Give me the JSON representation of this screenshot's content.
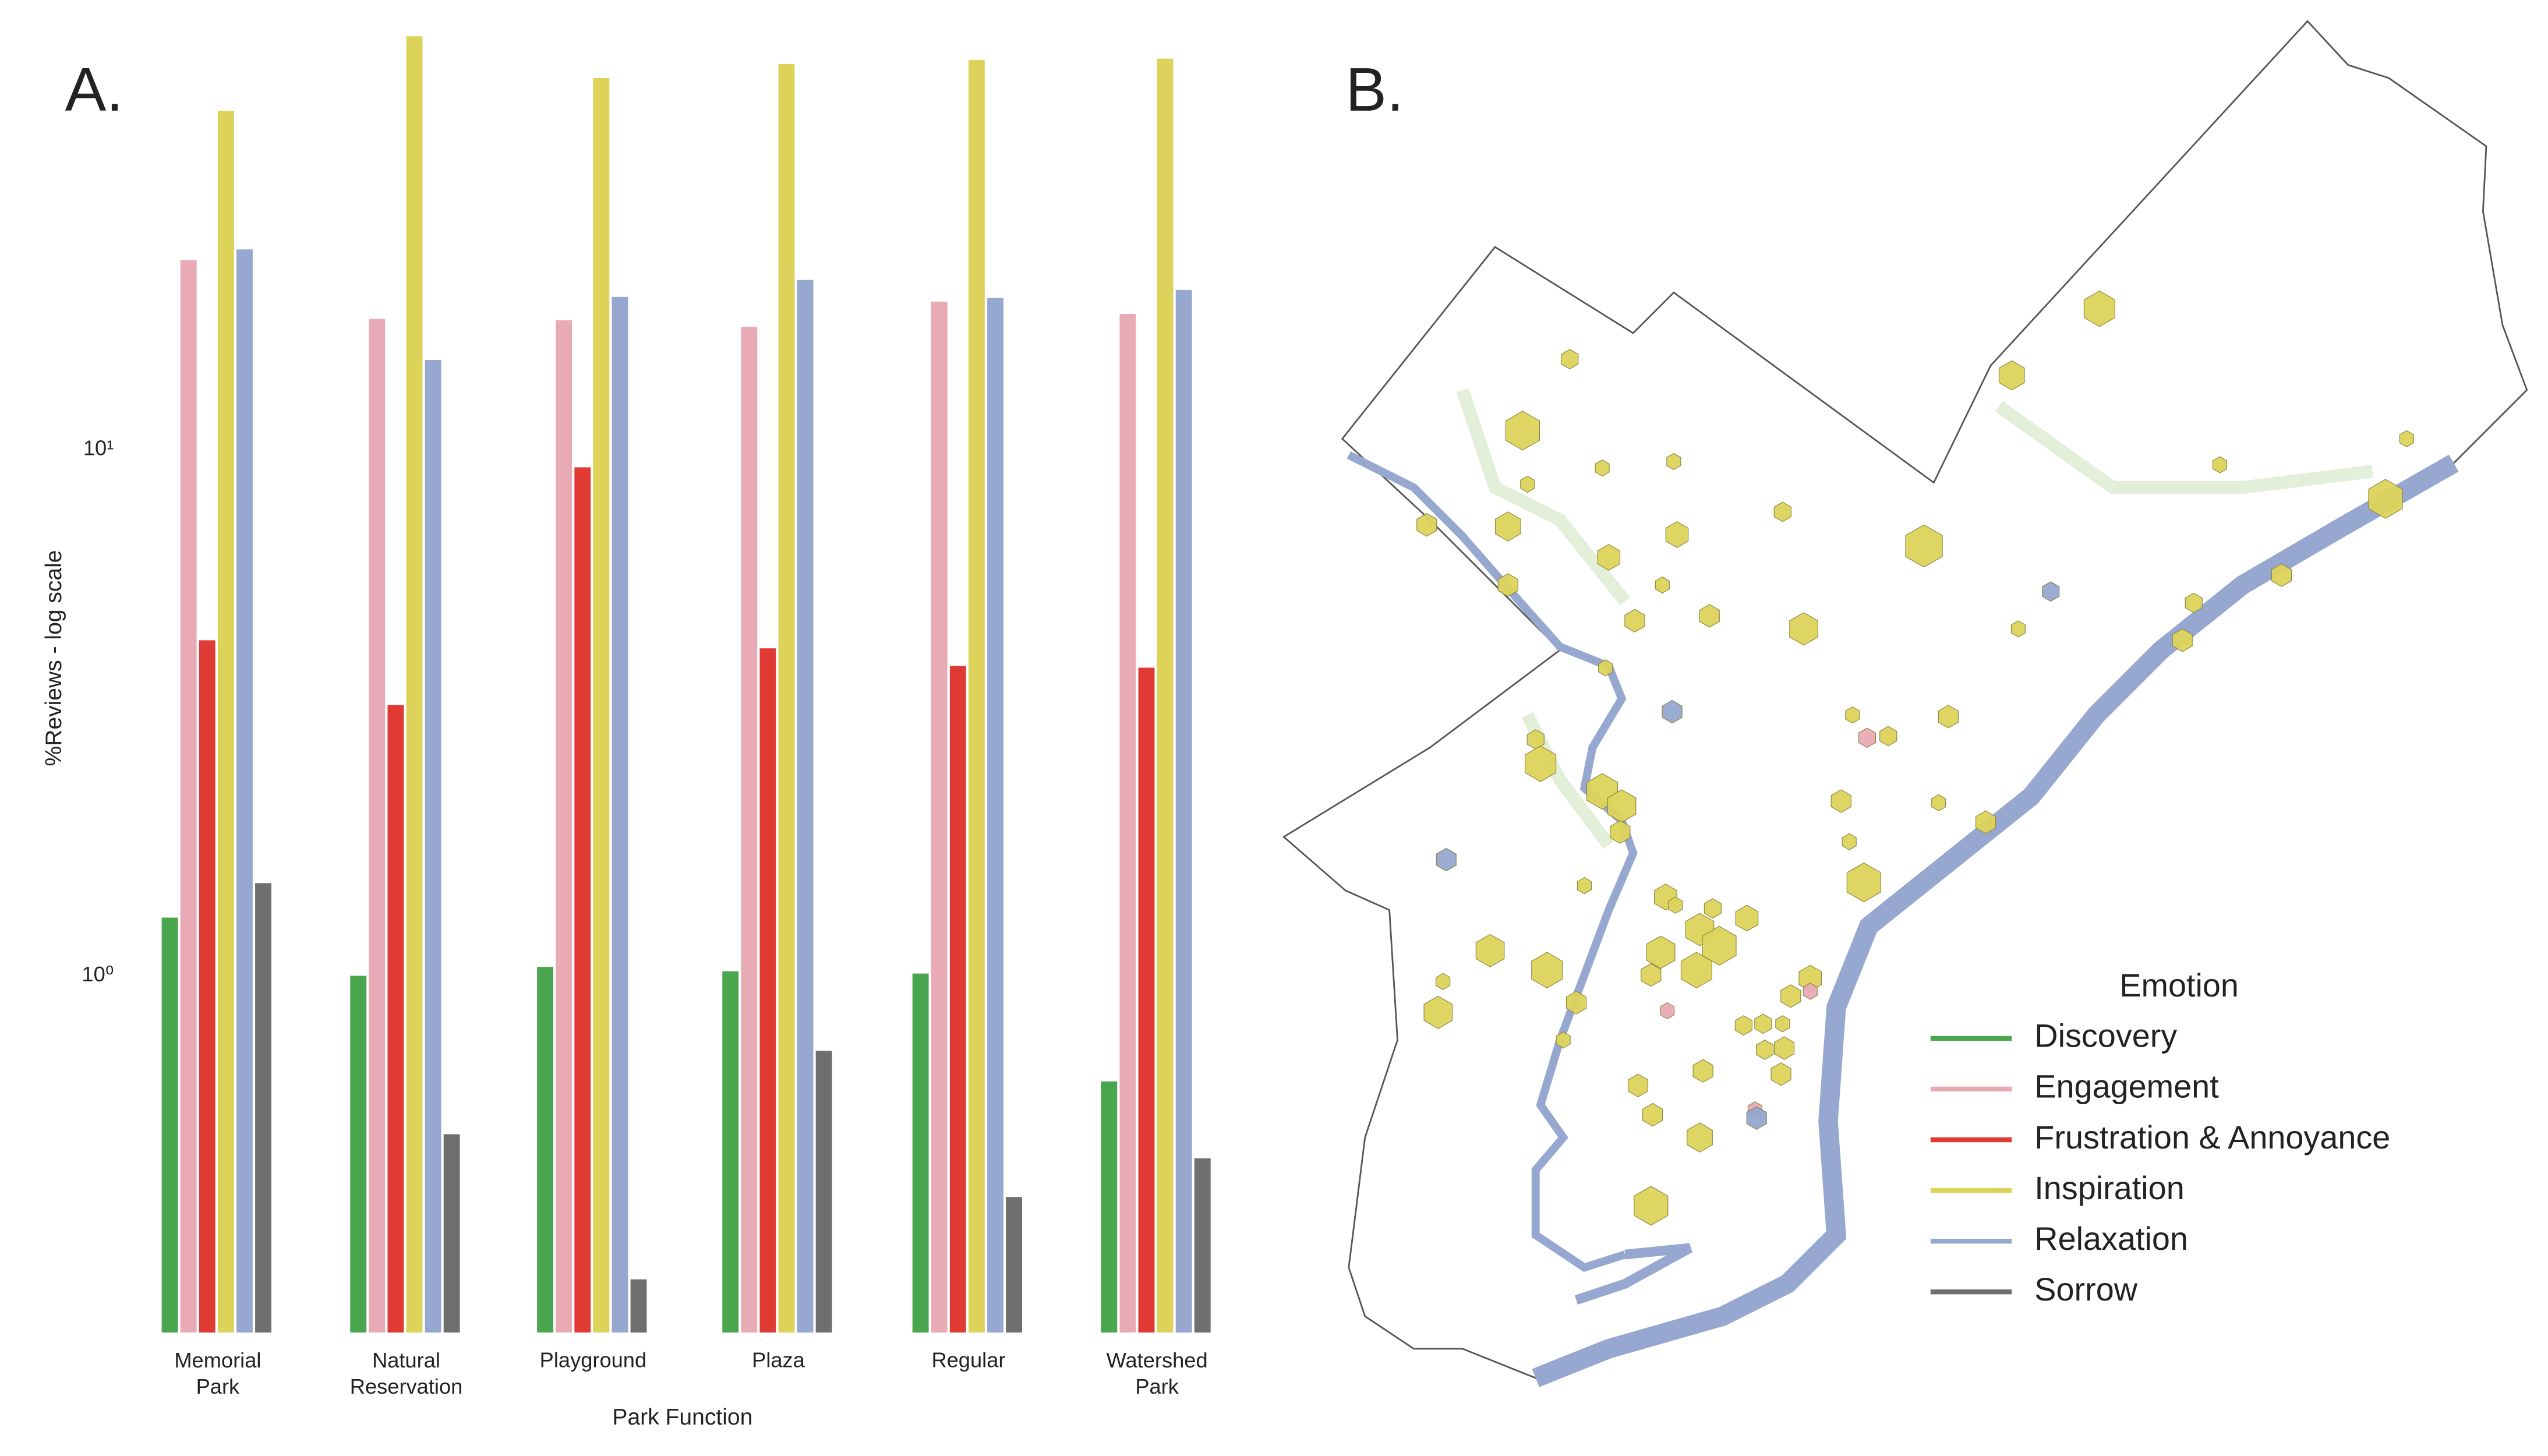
{
  "panel_labels": [
    "A.",
    "B."
  ],
  "chart_data": {
    "type": "bar",
    "log_scale": true,
    "grid": false,
    "x_label": "Park Function",
    "y_label": "%Reviews - log scale",
    "categories": [
      "Memorial Park",
      "Natural Reservation",
      "Playground",
      "Plaza",
      "Regular",
      "Watershed Park"
    ],
    "ylim": [
      0.21,
      62
    ],
    "yticks": [
      {
        "value": 1,
        "label": "10⁰"
      },
      {
        "value": 10,
        "label": "10¹"
      }
    ],
    "legend_title": "Emotion",
    "series": [
      {
        "name": "Discovery",
        "color": "#4aa64e",
        "values": [
          1.29,
          1.0,
          1.04,
          1.02,
          1.01,
          0.63
        ]
      },
      {
        "name": "Engagement",
        "color": "#e8aab4",
        "values": [
          22.9,
          17.7,
          17.6,
          17.1,
          19.1,
          18.1
        ]
      },
      {
        "name": "Frustration & Annoyance",
        "color": "#e03a35",
        "values": [
          4.34,
          3.27,
          9.25,
          4.19,
          3.88,
          3.85
        ]
      },
      {
        "name": "Inspiration",
        "color": "#ddd35a",
        "values": [
          44,
          61,
          50.8,
          54,
          55,
          55.3
        ]
      },
      {
        "name": "Relaxation",
        "color": "#96a7d0",
        "values": [
          24,
          14.8,
          19.5,
          21,
          19.4,
          20.1
        ]
      },
      {
        "name": "Sorrow",
        "color": "#6f6f6f",
        "values": [
          1.5,
          0.5,
          0.265,
          0.72,
          0.38,
          0.45
        ]
      }
    ]
  }
}
